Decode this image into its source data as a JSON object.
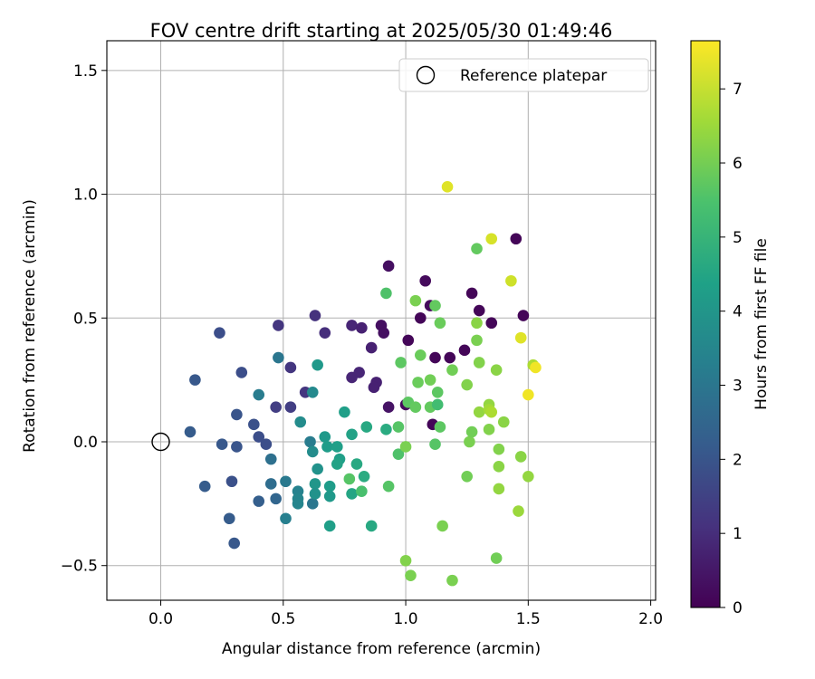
{
  "chart_data": {
    "type": "scatter",
    "title": "FOV centre drift starting at 2025/05/30 01:49:46",
    "xlabel": "Angular distance from reference (arcmin)",
    "ylabel": "Rotation from reference (arcmin)",
    "xlim": [
      -0.22,
      2.02
    ],
    "ylim": [
      -0.64,
      1.62
    ],
    "xticks": [
      0.0,
      0.5,
      1.0,
      1.5,
      2.0
    ],
    "xtick_labels": [
      "0.0",
      "0.5",
      "1.0",
      "1.5",
      "2.0"
    ],
    "yticks": [
      -0.5,
      0.0,
      0.5,
      1.0,
      1.5
    ],
    "ytick_labels": [
      "−0.5",
      "0.0",
      "0.5",
      "1.0",
      "1.5"
    ],
    "grid": true,
    "legend": {
      "placement": "top-right",
      "entries": [
        "Reference platepar"
      ]
    },
    "reference_point": {
      "name": "Reference platepar",
      "x": 0.0,
      "y": 0.0
    },
    "colorbar": {
      "label": "Hours from first FF file",
      "colormap": "viridis",
      "range": [
        0,
        7.65
      ],
      "ticks": [
        0,
        1,
        2,
        3,
        4,
        5,
        6,
        7
      ],
      "tick_labels": [
        "0",
        "1",
        "2",
        "3",
        "4",
        "5",
        "6",
        "7"
      ]
    },
    "points": [
      {
        "x": 0.93,
        "y": 0.71,
        "h": 0.3
      },
      {
        "x": 0.9,
        "y": 0.47,
        "h": 0.3
      },
      {
        "x": 0.91,
        "y": 0.44,
        "h": 0.3
      },
      {
        "x": 1.08,
        "y": 0.65,
        "h": 0.2
      },
      {
        "x": 1.1,
        "y": 0.55,
        "h": 0.2
      },
      {
        "x": 1.06,
        "y": 0.5,
        "h": 0.1
      },
      {
        "x": 1.01,
        "y": 0.41,
        "h": 0.1
      },
      {
        "x": 1.12,
        "y": 0.34,
        "h": 0.1
      },
      {
        "x": 1.18,
        "y": 0.34,
        "h": 0.1
      },
      {
        "x": 1.24,
        "y": 0.37,
        "h": 0.1
      },
      {
        "x": 1.27,
        "y": 0.6,
        "h": 0.1
      },
      {
        "x": 1.3,
        "y": 0.53,
        "h": 0.1
      },
      {
        "x": 1.35,
        "y": 0.48,
        "h": 0.1
      },
      {
        "x": 1.45,
        "y": 0.82,
        "h": 0.1
      },
      {
        "x": 1.48,
        "y": 0.51,
        "h": 0.1
      },
      {
        "x": 1.11,
        "y": 0.07,
        "h": 0.1
      },
      {
        "x": 1.0,
        "y": 0.15,
        "h": 0.2
      },
      {
        "x": 0.93,
        "y": 0.14,
        "h": 0.4
      },
      {
        "x": 0.78,
        "y": 0.47,
        "h": 0.8
      },
      {
        "x": 0.82,
        "y": 0.46,
        "h": 0.7
      },
      {
        "x": 0.86,
        "y": 0.38,
        "h": 0.7
      },
      {
        "x": 0.81,
        "y": 0.28,
        "h": 0.8
      },
      {
        "x": 0.78,
        "y": 0.26,
        "h": 0.8
      },
      {
        "x": 0.88,
        "y": 0.24,
        "h": 0.7
      },
      {
        "x": 0.87,
        "y": 0.22,
        "h": 0.7
      },
      {
        "x": 0.67,
        "y": 0.44,
        "h": 1.0
      },
      {
        "x": 0.63,
        "y": 0.51,
        "h": 1.1
      },
      {
        "x": 0.48,
        "y": 0.47,
        "h": 1.2
      },
      {
        "x": 0.53,
        "y": 0.3,
        "h": 1.2
      },
      {
        "x": 0.59,
        "y": 0.2,
        "h": 1.2
      },
      {
        "x": 0.53,
        "y": 0.14,
        "h": 1.4
      },
      {
        "x": 0.47,
        "y": 0.14,
        "h": 1.4
      },
      {
        "x": 0.24,
        "y": 0.44,
        "h": 1.8
      },
      {
        "x": 0.33,
        "y": 0.28,
        "h": 1.8
      },
      {
        "x": 0.14,
        "y": 0.25,
        "h": 2.1
      },
      {
        "x": 0.31,
        "y": 0.11,
        "h": 2.0
      },
      {
        "x": 0.38,
        "y": 0.07,
        "h": 1.9
      },
      {
        "x": 0.4,
        "y": 0.02,
        "h": 1.8
      },
      {
        "x": 0.43,
        "y": -0.01,
        "h": 1.8
      },
      {
        "x": 0.12,
        "y": 0.04,
        "h": 2.2
      },
      {
        "x": 0.25,
        "y": -0.01,
        "h": 2.1
      },
      {
        "x": 0.31,
        "y": -0.02,
        "h": 2.0
      },
      {
        "x": 0.29,
        "y": -0.16,
        "h": 1.9
      },
      {
        "x": 0.18,
        "y": -0.18,
        "h": 2.2
      },
      {
        "x": 0.4,
        "y": -0.24,
        "h": 2.3
      },
      {
        "x": 0.28,
        "y": -0.31,
        "h": 2.2
      },
      {
        "x": 0.3,
        "y": -0.41,
        "h": 2.1
      },
      {
        "x": 0.47,
        "y": -0.23,
        "h": 2.5
      },
      {
        "x": 0.45,
        "y": -0.17,
        "h": 2.7
      },
      {
        "x": 0.45,
        "y": -0.07,
        "h": 2.8
      },
      {
        "x": 0.4,
        "y": 0.19,
        "h": 3.2
      },
      {
        "x": 0.48,
        "y": 0.34,
        "h": 3.0
      },
      {
        "x": 0.51,
        "y": -0.16,
        "h": 3.1
      },
      {
        "x": 0.51,
        "y": -0.31,
        "h": 3.3
      },
      {
        "x": 0.56,
        "y": -0.2,
        "h": 3.4
      },
      {
        "x": 0.56,
        "y": -0.23,
        "h": 3.5
      },
      {
        "x": 0.56,
        "y": -0.25,
        "h": 3.5
      },
      {
        "x": 0.62,
        "y": -0.25,
        "h": 3.0
      },
      {
        "x": 0.61,
        "y": 0.0,
        "h": 3.2
      },
      {
        "x": 0.62,
        "y": 0.2,
        "h": 3.6
      },
      {
        "x": 0.57,
        "y": 0.08,
        "h": 3.7
      },
      {
        "x": 0.62,
        "y": -0.04,
        "h": 3.7
      },
      {
        "x": 0.64,
        "y": -0.11,
        "h": 3.9
      },
      {
        "x": 0.63,
        "y": -0.17,
        "h": 4.0
      },
      {
        "x": 0.63,
        "y": -0.21,
        "h": 3.9
      },
      {
        "x": 0.64,
        "y": 0.31,
        "h": 4.1
      },
      {
        "x": 0.67,
        "y": 0.02,
        "h": 4.1
      },
      {
        "x": 0.68,
        "y": -0.02,
        "h": 4.2
      },
      {
        "x": 0.69,
        "y": -0.18,
        "h": 4.2
      },
      {
        "x": 0.69,
        "y": -0.22,
        "h": 4.1
      },
      {
        "x": 0.69,
        "y": -0.34,
        "h": 4.3
      },
      {
        "x": 0.72,
        "y": -0.02,
        "h": 4.3
      },
      {
        "x": 0.73,
        "y": -0.07,
        "h": 4.3
      },
      {
        "x": 0.72,
        "y": -0.09,
        "h": 4.4
      },
      {
        "x": 0.75,
        "y": 0.12,
        "h": 4.3
      },
      {
        "x": 0.78,
        "y": 0.03,
        "h": 4.4
      },
      {
        "x": 0.78,
        "y": -0.21,
        "h": 4.5
      },
      {
        "x": 0.8,
        "y": -0.09,
        "h": 4.6
      },
      {
        "x": 0.83,
        "y": -0.14,
        "h": 4.7
      },
      {
        "x": 0.84,
        "y": 0.06,
        "h": 4.6
      },
      {
        "x": 0.86,
        "y": -0.34,
        "h": 4.6
      },
      {
        "x": 0.92,
        "y": 0.05,
        "h": 4.7
      },
      {
        "x": 0.82,
        "y": -0.2,
        "h": 5.4
      },
      {
        "x": 0.77,
        "y": -0.15,
        "h": 5.6
      },
      {
        "x": 0.92,
        "y": 0.6,
        "h": 5.5
      },
      {
        "x": 0.93,
        "y": -0.18,
        "h": 5.6
      },
      {
        "x": 0.97,
        "y": 0.06,
        "h": 5.6
      },
      {
        "x": 0.97,
        "y": -0.05,
        "h": 5.5
      },
      {
        "x": 0.98,
        "y": 0.32,
        "h": 5.7
      },
      {
        "x": 1.0,
        "y": -0.02,
        "h": 6.1
      },
      {
        "x": 1.0,
        "y": -0.48,
        "h": 6.2
      },
      {
        "x": 1.02,
        "y": -0.54,
        "h": 6.1
      },
      {
        "x": 1.01,
        "y": 0.16,
        "h": 5.7
      },
      {
        "x": 1.04,
        "y": 0.14,
        "h": 5.8
      },
      {
        "x": 1.05,
        "y": 0.24,
        "h": 5.9
      },
      {
        "x": 1.04,
        "y": 0.57,
        "h": 6.1
      },
      {
        "x": 1.06,
        "y": 0.35,
        "h": 5.9
      },
      {
        "x": 1.1,
        "y": 0.14,
        "h": 5.8
      },
      {
        "x": 1.1,
        "y": 0.25,
        "h": 6.0
      },
      {
        "x": 1.12,
        "y": 0.55,
        "h": 5.8
      },
      {
        "x": 1.12,
        "y": -0.01,
        "h": 5.6
      },
      {
        "x": 1.13,
        "y": 0.2,
        "h": 5.7
      },
      {
        "x": 1.13,
        "y": 0.15,
        "h": 5.3
      },
      {
        "x": 1.14,
        "y": 0.06,
        "h": 5.7
      },
      {
        "x": 1.14,
        "y": 0.48,
        "h": 5.9
      },
      {
        "x": 1.15,
        "y": -0.34,
        "h": 6.1
      },
      {
        "x": 1.19,
        "y": 0.29,
        "h": 6.0
      },
      {
        "x": 1.19,
        "y": -0.56,
        "h": 6.1
      },
      {
        "x": 1.17,
        "y": 1.03,
        "h": 7.3
      },
      {
        "x": 1.25,
        "y": 0.23,
        "h": 6.2
      },
      {
        "x": 1.25,
        "y": -0.14,
        "h": 6.0
      },
      {
        "x": 1.26,
        "y": 0.0,
        "h": 6.1
      },
      {
        "x": 1.27,
        "y": 0.04,
        "h": 6.0
      },
      {
        "x": 1.29,
        "y": 0.41,
        "h": 6.1
      },
      {
        "x": 1.29,
        "y": 0.48,
        "h": 6.3
      },
      {
        "x": 1.29,
        "y": 0.78,
        "h": 5.8
      },
      {
        "x": 1.3,
        "y": 0.32,
        "h": 6.2
      },
      {
        "x": 1.3,
        "y": 0.12,
        "h": 6.4
      },
      {
        "x": 1.34,
        "y": 0.15,
        "h": 6.4
      },
      {
        "x": 1.34,
        "y": 0.13,
        "h": 6.6
      },
      {
        "x": 1.35,
        "y": 0.12,
        "h": 6.7
      },
      {
        "x": 1.34,
        "y": 0.05,
        "h": 6.2
      },
      {
        "x": 1.35,
        "y": 0.82,
        "h": 7.2
      },
      {
        "x": 1.37,
        "y": 0.29,
        "h": 6.3
      },
      {
        "x": 1.37,
        "y": -0.47,
        "h": 6.0
      },
      {
        "x": 1.38,
        "y": -0.03,
        "h": 6.2
      },
      {
        "x": 1.38,
        "y": -0.1,
        "h": 6.3
      },
      {
        "x": 1.38,
        "y": -0.19,
        "h": 6.4
      },
      {
        "x": 1.4,
        "y": 0.08,
        "h": 6.3
      },
      {
        "x": 1.43,
        "y": 0.65,
        "h": 7.1
      },
      {
        "x": 1.46,
        "y": -0.28,
        "h": 6.5
      },
      {
        "x": 1.47,
        "y": 0.42,
        "h": 7.3
      },
      {
        "x": 1.47,
        "y": -0.06,
        "h": 6.3
      },
      {
        "x": 1.5,
        "y": 0.19,
        "h": 7.5
      },
      {
        "x": 1.5,
        "y": -0.14,
        "h": 6.4
      },
      {
        "x": 1.52,
        "y": 0.31,
        "h": 6.7
      },
      {
        "x": 1.53,
        "y": 0.3,
        "h": 7.5
      }
    ]
  }
}
